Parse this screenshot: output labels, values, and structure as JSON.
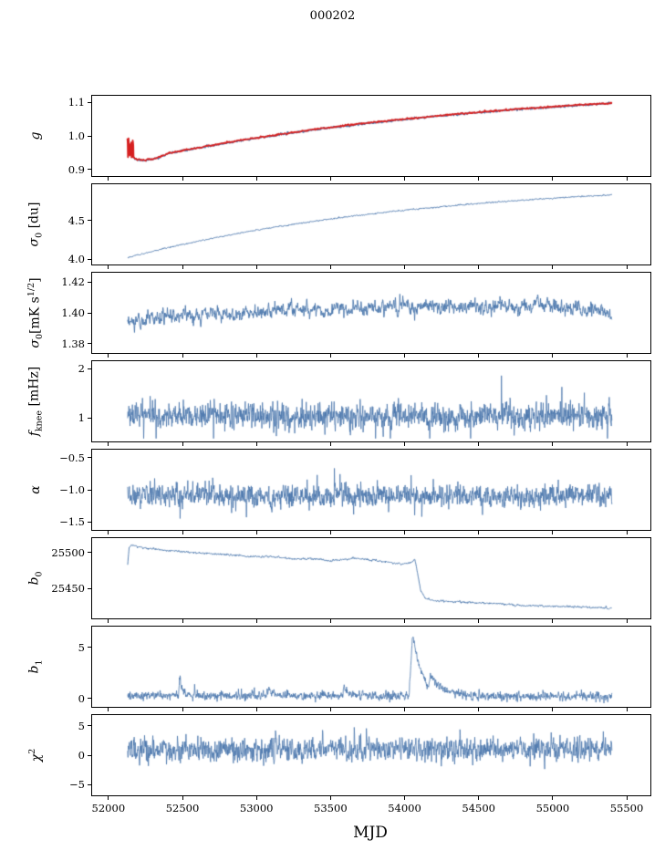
{
  "figure": {
    "title": "000202"
  },
  "colors": {
    "line": "#4a76ac",
    "red": "#d62020",
    "axis": "#000000",
    "text": "#000000",
    "background": "#ffffff"
  },
  "chart_data": {
    "type": "line",
    "layout": "8 vertically stacked subplots sharing one x-axis",
    "title": "000202",
    "xlabel": "MJD",
    "x_range": [
      51890,
      55660
    ],
    "x_tick_vals": [
      52000,
      52500,
      53000,
      53500,
      54000,
      54500,
      55000,
      55500
    ],
    "x_tick_labels": [
      "52000",
      "52500",
      "53000",
      "53500",
      "54000",
      "54500",
      "55000",
      "55500"
    ],
    "x_data_range": [
      52130,
      55400
    ],
    "grid": false,
    "legend": false,
    "subplots": [
      {
        "name": "g",
        "ylabel_text": "g",
        "label_main": "g",
        "y_range": [
          0.88,
          1.12
        ],
        "y_tick_vals": [
          0.9,
          1.0,
          1.1
        ],
        "y_tick_labels": [
          "0.9",
          "1.0",
          "1.1"
        ],
        "series": [
          {
            "name": "gain-blue",
            "color": "line",
            "line_width": 1.2,
            "seed": 11,
            "step": 2,
            "x_start": 52130,
            "x_end": 55400,
            "noise_sd": 0.0012,
            "ar": 0.5,
            "keypoints": [
              [
                52130,
                0.988
              ],
              [
                52136,
                0.972
              ],
              [
                52143,
                0.957
              ],
              [
                52152,
                0.9455
              ],
              [
                52163,
                0.9375
              ],
              [
                52178,
                0.9315
              ],
              [
                52200,
                0.928
              ],
              [
                52250,
                0.9268
              ],
              [
                52300,
                0.93
              ],
              [
                52350,
                0.9365
              ],
              [
                52400,
                0.9464
              ],
              [
                52600,
                0.9633
              ],
              [
                52800,
                0.9789
              ],
              [
                53000,
                0.9932
              ],
              [
                53200,
                1.0064
              ],
              [
                53400,
                1.0186
              ],
              [
                53600,
                1.0298
              ],
              [
                53800,
                1.04
              ],
              [
                54000,
                1.0495
              ],
              [
                54200,
                1.0582
              ],
              [
                54400,
                1.0662
              ],
              [
                54600,
                1.0735
              ],
              [
                54800,
                1.0803
              ],
              [
                55000,
                1.0865
              ],
              [
                55200,
                1.0922
              ],
              [
                55400,
                1.0975
              ]
            ]
          },
          {
            "name": "gain-red-overlay",
            "color": "red",
            "line_width": 1.5,
            "seed": 12,
            "step": 2,
            "x_start": 52130,
            "x_end": 55400,
            "noise_sd": 0.001,
            "ar": 0.5,
            "y_offset": 0.0012,
            "cluster": {
              "x0": 52128,
              "x1": 52170,
              "ymin": 0.93,
              "ymax": 0.993,
              "step": 2
            },
            "keypoints": [
              [
                52130,
                0.988
              ],
              [
                52136,
                0.972
              ],
              [
                52143,
                0.957
              ],
              [
                52152,
                0.9455
              ],
              [
                52163,
                0.9375
              ],
              [
                52178,
                0.9315
              ],
              [
                52200,
                0.928
              ],
              [
                52250,
                0.9268
              ],
              [
                52300,
                0.93
              ],
              [
                52350,
                0.9365
              ],
              [
                52400,
                0.9464
              ],
              [
                52600,
                0.9633
              ],
              [
                52800,
                0.9789
              ],
              [
                53000,
                0.9932
              ],
              [
                53200,
                1.0064
              ],
              [
                53400,
                1.0186
              ],
              [
                53600,
                1.0298
              ],
              [
                53800,
                1.04
              ],
              [
                54000,
                1.0495
              ],
              [
                54200,
                1.0582
              ],
              [
                54400,
                1.0662
              ],
              [
                54600,
                1.0735
              ],
              [
                54800,
                1.0803
              ],
              [
                55000,
                1.0865
              ],
              [
                55200,
                1.0922
              ],
              [
                55400,
                1.0975
              ]
            ]
          }
        ]
      },
      {
        "name": "sigma0-du",
        "ylabel_text": "sigma_0 [du]",
        "label_main": "σ",
        "label_sub": "0",
        "label_rest": " [du]",
        "y_range": [
          3.93,
          4.97
        ],
        "y_tick_vals": [
          4.0,
          4.5
        ],
        "y_tick_labels": [
          "4.0",
          "4.5"
        ],
        "series": [
          {
            "name": "sigma0-du",
            "color": "line",
            "line_width": 1.0,
            "seed": 21,
            "step": 2,
            "x_start": 52130,
            "x_end": 55400,
            "noise_sd": 0.0035,
            "ar": 0.5,
            "keypoints": [
              [
                52130,
                4.02
              ],
              [
                52400,
                4.148
              ],
              [
                52700,
                4.27
              ],
              [
                53000,
                4.376
              ],
              [
                53300,
                4.467
              ],
              [
                53600,
                4.546
              ],
              [
                53900,
                4.613
              ],
              [
                54200,
                4.671
              ],
              [
                54500,
                4.721
              ],
              [
                54800,
                4.764
              ],
              [
                55100,
                4.801
              ],
              [
                55400,
                4.833
              ]
            ]
          }
        ]
      },
      {
        "name": "sigma0-mk",
        "ylabel_text": "sigma_0 [mK s^1/2]",
        "label_main": "σ",
        "label_sub": "0",
        "label_rest": "[mK s",
        "label_sup": "1/2",
        "label_rest2": "]",
        "y_range": [
          1.374,
          1.426
        ],
        "y_tick_vals": [
          1.38,
          1.4,
          1.42
        ],
        "y_tick_labels": [
          "1.38",
          "1.40",
          "1.42"
        ],
        "series": [
          {
            "name": "sigma0-mk",
            "color": "line",
            "line_width": 0.9,
            "seed": 31,
            "step": 2,
            "x_start": 52130,
            "x_end": 55400,
            "noise_sd": 0.002,
            "ar": 0.55,
            "keypoints": [
              [
                52130,
                1.3935
              ],
              [
                52300,
                1.397
              ],
              [
                52600,
                1.3985
              ],
              [
                52900,
                1.4
              ],
              [
                53200,
                1.4025
              ],
              [
                53500,
                1.402
              ],
              [
                53800,
                1.4035
              ],
              [
                54100,
                1.404
              ],
              [
                54400,
                1.4035
              ],
              [
                54700,
                1.4045
              ],
              [
                55000,
                1.4045
              ],
              [
                55200,
                1.403
              ],
              [
                55400,
                1.3995
              ]
            ]
          }
        ]
      },
      {
        "name": "fknee",
        "ylabel_text": "f_knee [mHz]",
        "label_main": "f",
        "label_sub": "knee",
        "label_rest": " [mHz]",
        "y_range": [
          0.52,
          2.15
        ],
        "y_tick_vals": [
          1,
          2
        ],
        "y_tick_labels": [
          "1",
          "2"
        ],
        "series": [
          {
            "name": "fknee",
            "color": "line",
            "line_width": 0.8,
            "seed": 41,
            "step": 2,
            "x_start": 52130,
            "x_end": 55400,
            "noise_sd": 0.12,
            "ar": 0.25,
            "outlier_prob": 0.03,
            "outlier_mult": 3.0,
            "clamp": [
              0.58,
              2.12
            ],
            "keypoints": [
              [
                52130,
                1.06
              ],
              [
                53500,
                1.04
              ],
              [
                55400,
                1.03
              ]
            ]
          }
        ]
      },
      {
        "name": "alpha",
        "ylabel_text": "alpha",
        "label_main": "α",
        "y_range": [
          -1.62,
          -0.38
        ],
        "y_tick_vals": [
          -1.5,
          -1.0,
          -0.5
        ],
        "y_tick_labels": [
          "−1.5",
          "−1.0",
          "−0.5"
        ],
        "series": [
          {
            "name": "alpha",
            "color": "line",
            "line_width": 0.8,
            "seed": 51,
            "step": 2,
            "x_start": 52130,
            "x_end": 55400,
            "noise_sd": 0.082,
            "ar": 0.3,
            "outlier_prob": 0.02,
            "outlier_mult": 2.5,
            "clamp": [
              -1.58,
              -0.55
            ],
            "keypoints": [
              [
                52130,
                -1.1
              ],
              [
                55400,
                -1.1
              ]
            ]
          }
        ]
      },
      {
        "name": "b0",
        "ylabel_text": "b_0",
        "label_main": "b",
        "label_sub": "0",
        "y_range": [
          25408,
          25520
        ],
        "y_tick_vals": [
          25450,
          25500
        ],
        "y_tick_labels": [
          "25450",
          "25500"
        ],
        "series": [
          {
            "name": "b0",
            "color": "line",
            "line_width": 0.9,
            "seed": 61,
            "step": 2,
            "x_start": 52130,
            "x_end": 55400,
            "noise_sd": 0.6,
            "ar": 0.5,
            "keypoints": [
              [
                52130,
                25483
              ],
              [
                52140,
                25508
              ],
              [
                52160,
                25510
              ],
              [
                52250,
                25506
              ],
              [
                52400,
                25503
              ],
              [
                52600,
                25499
              ],
              [
                52800,
                25497
              ],
              [
                53000,
                25494
              ],
              [
                53100,
                25494
              ],
              [
                53250,
                25491
              ],
              [
                53400,
                25491
              ],
              [
                53500,
                25488
              ],
              [
                53650,
                25492
              ],
              [
                53800,
                25489
              ],
              [
                53900,
                25486
              ],
              [
                54000,
                25484
              ],
              [
                54045,
                25486
              ],
              [
                54070,
                25491
              ],
              [
                54090,
                25468
              ],
              [
                54110,
                25446
              ],
              [
                54140,
                25436
              ],
              [
                54200,
                25433
              ],
              [
                54350,
                25431
              ],
              [
                54500,
                25430
              ],
              [
                54650,
                25428
              ],
              [
                54800,
                25426
              ],
              [
                55000,
                25425
              ],
              [
                55200,
                25424
              ],
              [
                55400,
                25422
              ]
            ]
          }
        ]
      },
      {
        "name": "b1",
        "ylabel_text": "b_1",
        "label_main": "b",
        "label_sub": "1",
        "y_range": [
          -0.8,
          7.0
        ],
        "y_tick_vals": [
          0,
          5
        ],
        "y_tick_labels": [
          "0",
          "5"
        ],
        "series": [
          {
            "name": "b1",
            "color": "line",
            "line_width": 0.8,
            "seed": 71,
            "step": 2,
            "x_start": 52130,
            "x_end": 55400,
            "noise_sd": 0.2,
            "ar": 0.3,
            "outlier_prob": 0.012,
            "outlier_mult": 2.2,
            "clamp": [
              -0.45,
              6.9
            ],
            "spikes": [
              {
                "x": 52480,
                "amp": 2.1,
                "decay": 18,
                "rise": 6
              },
              {
                "x": 53080,
                "amp": 0.7,
                "decay": 25,
                "rise": 5
              },
              {
                "x": 53590,
                "amp": 0.9,
                "decay": 30,
                "rise": 8
              },
              {
                "x": 54055,
                "amp": 6.1,
                "decay": 60,
                "rise": 25
              },
              {
                "x": 54175,
                "amp": 1.3,
                "decay": 90,
                "rise": 10
              }
            ],
            "keypoints": [
              [
                52130,
                0.32
              ],
              [
                55400,
                0.22
              ]
            ]
          }
        ]
      },
      {
        "name": "chi2",
        "ylabel_text": "chi^2",
        "label_main": "χ",
        "label_sup": "2",
        "y_range": [
          -6.8,
          6.8
        ],
        "y_tick_vals": [
          -5,
          0,
          5
        ],
        "y_tick_labels": [
          "−5",
          "0",
          "5"
        ],
        "series": [
          {
            "name": "chi2",
            "color": "line",
            "line_width": 0.8,
            "seed": 81,
            "step": 2,
            "x_start": 52130,
            "x_end": 55400,
            "noise_sd": 0.95,
            "ar": 0.3,
            "clamp": [
              -4.2,
              5.2
            ],
            "keypoints": [
              [
                52130,
                0.95
              ],
              [
                55400,
                1.15
              ]
            ]
          }
        ]
      }
    ]
  }
}
